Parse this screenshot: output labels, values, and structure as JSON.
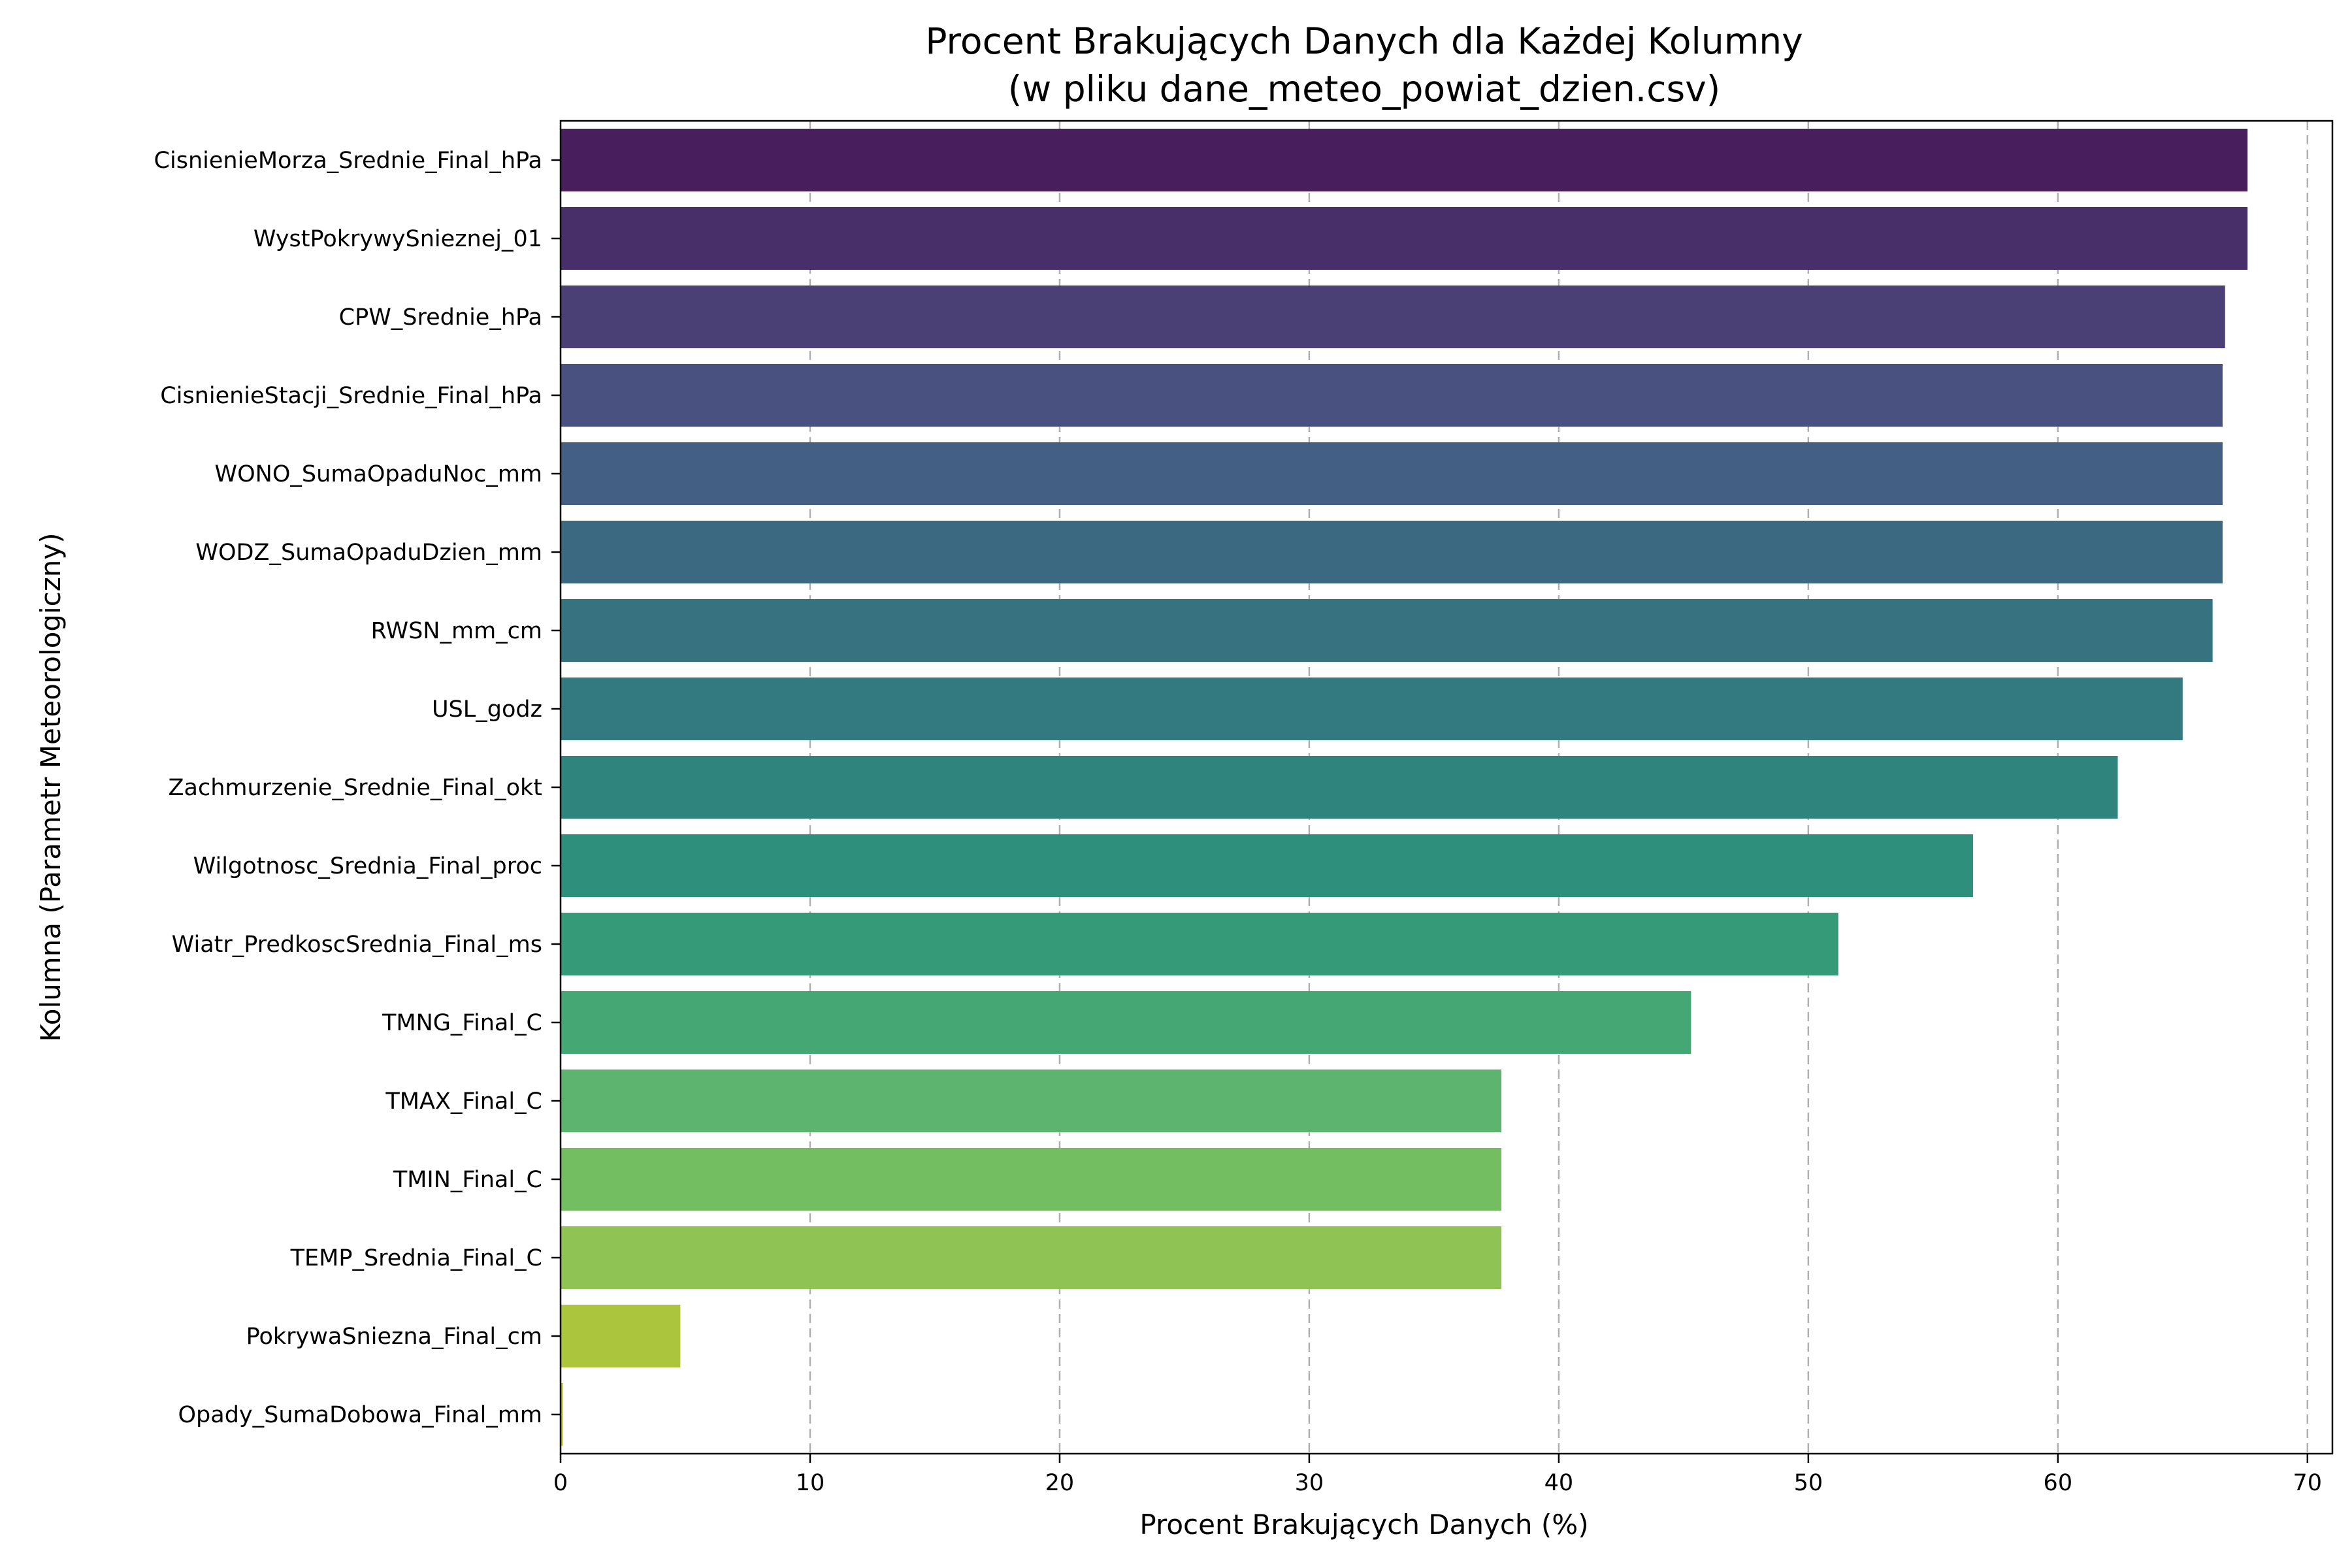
{
  "chart_data": {
    "type": "bar",
    "orientation": "horizontal",
    "title": "Procent Brakujących Danych dla Każdej Kolumny",
    "subtitle": "(w pliku dane_meteo_powiat_dzien.csv)",
    "xlabel": "Procent Brakujących Danych (%)",
    "ylabel": "Kolumna (Parametr Meteorologiczny)",
    "xlim": [
      0,
      71
    ],
    "xticks": [
      0,
      10,
      20,
      30,
      40,
      50,
      60,
      70
    ],
    "grid": "x-dashed",
    "palette": "viridis",
    "categories": [
      "CisnienieMorza_Srednie_Final_hPa",
      "WystPokrywySnieznej_01",
      "CPW_Srednie_hPa",
      "CisnienieStacji_Srednie_Final_hPa",
      "WONO_SumaOpaduNoc_mm",
      "WODZ_SumaOpaduDzien_mm",
      "RWSN_mm_cm",
      "USL_godz",
      "Zachmurzenie_Srednie_Final_okt",
      "Wilgotnosc_Srednia_Final_proc",
      "Wiatr_PredkoscSrednia_Final_ms",
      "TMNG_Final_C",
      "TMAX_Final_C",
      "TMIN_Final_C",
      "TEMP_Srednia_Final_C",
      "PokrywaSniezna_Final_cm",
      "Opady_SumaDobowa_Final_mm"
    ],
    "values": [
      67.6,
      67.6,
      66.7,
      66.6,
      66.6,
      66.6,
      66.2,
      65.0,
      62.4,
      56.6,
      51.2,
      45.3,
      37.7,
      37.7,
      37.7,
      4.8,
      0.1
    ],
    "colors": [
      "#481f5c",
      "#482f69",
      "#4b4076",
      "#48517f",
      "#435f83",
      "#3c6982",
      "#357381",
      "#337a80",
      "#2f857d",
      "#2e8f7d",
      "#359a78",
      "#45a774",
      "#5cb46e",
      "#74be62",
      "#8fc454",
      "#abc63d",
      "#c9cb2c"
    ]
  }
}
